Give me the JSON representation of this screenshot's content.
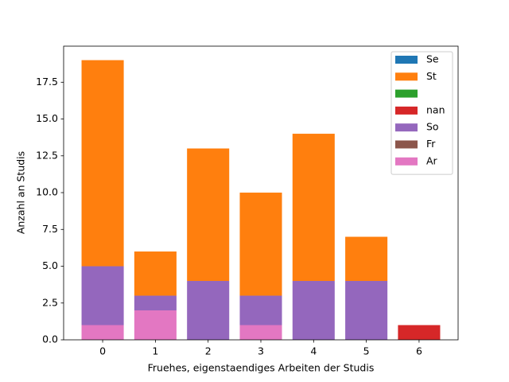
{
  "chart_data": {
    "type": "bar",
    "stacked": true,
    "x_label": "Fruehes, eigenstaendiges Arbeiten der Studis",
    "y_label": "Anzahl an Studis",
    "x": [
      0,
      1,
      2,
      3,
      4,
      5,
      6
    ],
    "xlim": [
      -0.74,
      6.74
    ],
    "xticks": [
      0,
      1,
      2,
      3,
      4,
      5,
      6
    ],
    "ylim": [
      0,
      19.95
    ],
    "yticks": [
      {
        "value": 0,
        "label": "0.0"
      },
      {
        "value": 2.5,
        "label": "2.5"
      },
      {
        "value": 5,
        "label": "5.0"
      },
      {
        "value": 7.5,
        "label": "7.5"
      },
      {
        "value": 10,
        "label": "10.0"
      },
      {
        "value": 12.5,
        "label": "12.5"
      },
      {
        "value": 15,
        "label": "15.0"
      },
      {
        "value": 17.5,
        "label": "17.5"
      }
    ],
    "grid": false,
    "legend": "upper right",
    "series": [
      {
        "name": "Se",
        "color": "#1f77b4",
        "values": [
          0,
          0,
          0,
          0,
          0,
          0,
          0
        ]
      },
      {
        "name": "St",
        "color": "#ff7f0e",
        "values": [
          14,
          3,
          9,
          7,
          10,
          3,
          0
        ]
      },
      {
        "name": null,
        "color": "#2ca02c",
        "values": [
          0,
          0,
          0,
          0,
          0,
          0,
          0
        ]
      },
      {
        "name": "nan",
        "color": "#d62728",
        "values": [
          0,
          0,
          0,
          0,
          0,
          0,
          1
        ]
      },
      {
        "name": "So",
        "color": "#9467bd",
        "values": [
          4,
          1,
          4,
          2,
          4,
          4,
          0
        ]
      },
      {
        "name": "Fr",
        "color": "#8c564b",
        "values": [
          0,
          0,
          0,
          0,
          0,
          0,
          0
        ]
      },
      {
        "name": "Ar",
        "color": "#e377c2",
        "values": [
          1,
          2,
          0,
          1,
          0,
          0,
          0
        ]
      }
    ]
  }
}
